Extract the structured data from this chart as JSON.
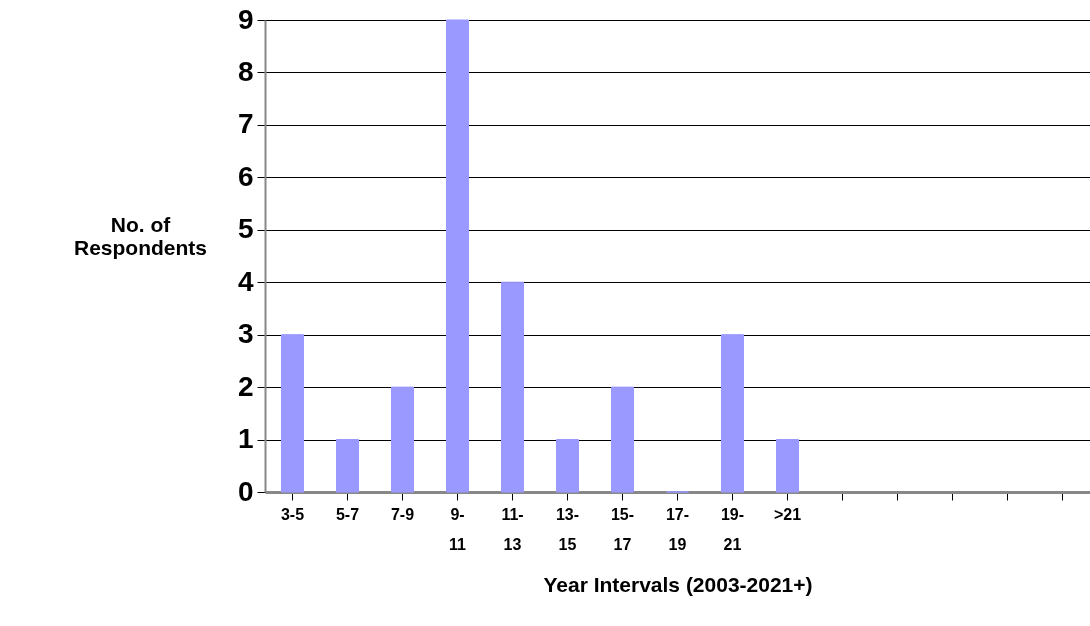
{
  "chart_data": {
    "type": "bar",
    "xlabel": "Year Intervals (2003-2021+)",
    "ylabel": "No. of Respondents",
    "categories": [
      "3-5",
      "5-7",
      "7-9",
      "9-11",
      "11-13",
      "13-15",
      "15-17",
      "17-19",
      "19-21",
      ">21",
      null,
      null,
      null,
      null,
      null
    ],
    "values": [
      3,
      1,
      2,
      9,
      4,
      1,
      2,
      0,
      3,
      1,
      null,
      null,
      null,
      null,
      null
    ],
    "color": "#9999ff",
    "ylim": [
      0,
      9
    ],
    "yticks": [
      0,
      1,
      2,
      3,
      4,
      5,
      6,
      7,
      8,
      9
    ],
    "grid": "y"
  }
}
